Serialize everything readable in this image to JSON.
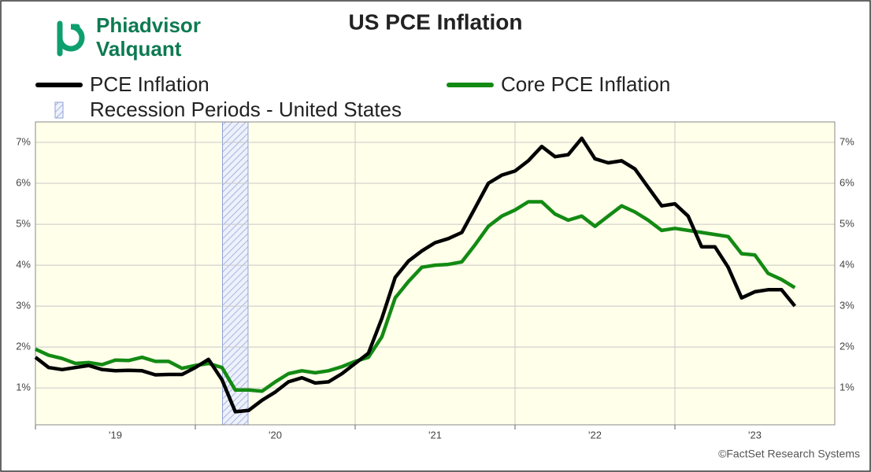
{
  "logo": [
    "Phiadvisor",
    "Valquant"
  ],
  "chart_data": {
    "type": "line",
    "title": "US PCE Inflation",
    "source": "©FactSet Research Systems",
    "x": [
      2019.0,
      2019.083,
      2019.167,
      2019.25,
      2019.333,
      2019.417,
      2019.5,
      2019.583,
      2019.667,
      2019.75,
      2019.833,
      2019.917,
      2020.0,
      2020.083,
      2020.167,
      2020.25,
      2020.333,
      2020.417,
      2020.5,
      2020.583,
      2020.667,
      2020.75,
      2020.833,
      2020.917,
      2021.0,
      2021.083,
      2021.167,
      2021.25,
      2021.333,
      2021.417,
      2021.5,
      2021.583,
      2021.667,
      2021.75,
      2021.833,
      2021.917,
      2022.0,
      2022.083,
      2022.167,
      2022.25,
      2022.333,
      2022.417,
      2022.5,
      2022.583,
      2022.667,
      2022.75,
      2022.833,
      2022.917,
      2023.0,
      2023.083,
      2023.167,
      2023.25,
      2023.333,
      2023.417,
      2023.5,
      2023.583,
      2023.667,
      2023.75
    ],
    "series": [
      {
        "name": "PCE Inflation",
        "color": "#000000",
        "values": [
          1.75,
          1.5,
          1.45,
          1.5,
          1.55,
          1.45,
          1.42,
          1.43,
          1.42,
          1.32,
          1.33,
          1.33,
          1.5,
          1.7,
          1.2,
          0.42,
          0.45,
          0.7,
          0.9,
          1.15,
          1.25,
          1.12,
          1.15,
          1.35,
          1.6,
          1.85,
          2.7,
          3.7,
          4.1,
          4.35,
          4.55,
          4.65,
          4.8,
          5.4,
          6.0,
          6.2,
          6.3,
          6.55,
          6.9,
          6.65,
          6.7,
          7.1,
          6.6,
          6.5,
          6.55,
          6.35,
          5.9,
          5.45,
          5.5,
          5.2,
          4.45,
          4.45,
          3.95,
          3.2,
          3.35,
          3.4,
          3.4,
          3.0
        ]
      },
      {
        "name": "Core PCE Inflation",
        "color": "#138a13",
        "values": [
          1.95,
          1.8,
          1.72,
          1.6,
          1.62,
          1.57,
          1.68,
          1.67,
          1.75,
          1.65,
          1.65,
          1.48,
          1.55,
          1.6,
          1.5,
          0.95,
          0.95,
          0.92,
          1.15,
          1.35,
          1.42,
          1.37,
          1.42,
          1.52,
          1.65,
          1.75,
          2.25,
          3.2,
          3.6,
          3.95,
          4.0,
          4.02,
          4.08,
          4.5,
          4.95,
          5.2,
          5.35,
          5.55,
          5.55,
          5.25,
          5.1,
          5.2,
          4.95,
          5.2,
          5.45,
          5.3,
          5.1,
          4.85,
          4.9,
          4.85,
          4.8,
          4.75,
          4.7,
          4.28,
          4.25,
          3.8,
          3.65,
          3.45
        ]
      }
    ],
    "recession": {
      "name": "Recession Periods - United States",
      "color": "#8fa3d9",
      "periods": [
        [
          2020.17,
          2020.33
        ]
      ]
    },
    "xlim": [
      2019,
      2024
    ],
    "xticks": [
      {
        "value": 2019,
        "label": "'19"
      },
      {
        "value": 2020,
        "label": "'20"
      },
      {
        "value": 2021,
        "label": "'21"
      },
      {
        "value": 2022,
        "label": "'22"
      },
      {
        "value": 2023,
        "label": "'23"
      }
    ],
    "ylim": [
      0.1,
      7.5
    ],
    "yticks": [
      {
        "value": 1,
        "label": "1%"
      },
      {
        "value": 2,
        "label": "2%"
      },
      {
        "value": 3,
        "label": "3%"
      },
      {
        "value": 4,
        "label": "4%"
      },
      {
        "value": 5,
        "label": "5%"
      },
      {
        "value": 6,
        "label": "6%"
      },
      {
        "value": 7,
        "label": "7%"
      }
    ],
    "grid": true,
    "background": "#ffffea"
  }
}
